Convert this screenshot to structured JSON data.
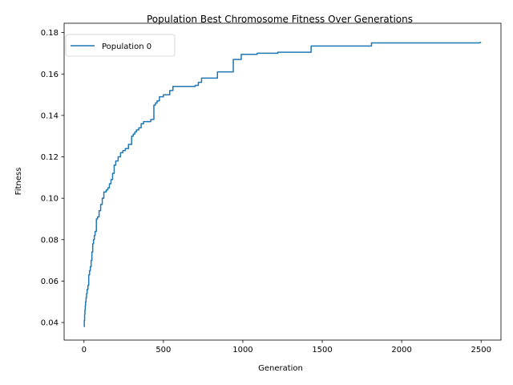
{
  "chart_data": {
    "type": "line",
    "title": "Population Best Chromosome Fitness Over Generations",
    "xlabel": "Generation",
    "ylabel": "Fitness",
    "xlim": [
      -125,
      2625
    ],
    "ylim": [
      0.0315,
      0.1845
    ],
    "xticks": [
      0,
      500,
      1000,
      1500,
      2000,
      2500
    ],
    "xtick_labels": [
      "0",
      "500",
      "1000",
      "1500",
      "2000",
      "2500"
    ],
    "yticks": [
      0.04,
      0.06,
      0.08,
      0.1,
      0.12,
      0.14,
      0.16,
      0.18
    ],
    "ytick_labels": [
      "0.04",
      "0.06",
      "0.08",
      "0.10",
      "0.12",
      "0.14",
      "0.16",
      "0.18"
    ],
    "grid": false,
    "legend_position": "top-left",
    "series": [
      {
        "name": "Population 0",
        "color": "#1f77b4",
        "step": true,
        "x": [
          0,
          2,
          4,
          6,
          8,
          10,
          13,
          16,
          20,
          25,
          30,
          35,
          40,
          45,
          50,
          55,
          60,
          65,
          70,
          78,
          85,
          95,
          105,
          115,
          125,
          140,
          150,
          160,
          170,
          180,
          190,
          200,
          215,
          230,
          245,
          260,
          280,
          300,
          310,
          320,
          330,
          345,
          360,
          375,
          390,
          420,
          440,
          450,
          460,
          475,
          500,
          540,
          560,
          620,
          660,
          700,
          720,
          740,
          840,
          940,
          990,
          1090,
          1220,
          1430,
          1810,
          2490,
          2500
        ],
        "y": [
          0.038,
          0.041,
          0.044,
          0.046,
          0.048,
          0.05,
          0.052,
          0.054,
          0.056,
          0.058,
          0.063,
          0.065,
          0.067,
          0.07,
          0.074,
          0.078,
          0.08,
          0.082,
          0.084,
          0.09,
          0.091,
          0.094,
          0.097,
          0.1,
          0.103,
          0.104,
          0.105,
          0.107,
          0.109,
          0.112,
          0.116,
          0.118,
          0.12,
          0.122,
          0.123,
          0.124,
          0.126,
          0.13,
          0.131,
          0.132,
          0.133,
          0.134,
          0.136,
          0.137,
          0.137,
          0.138,
          0.145,
          0.146,
          0.147,
          0.149,
          0.15,
          0.152,
          0.154,
          0.154,
          0.154,
          0.1545,
          0.156,
          0.158,
          0.161,
          0.167,
          0.1695,
          0.17,
          0.1705,
          0.1735,
          0.175,
          0.1752,
          0.1752
        ]
      }
    ]
  }
}
